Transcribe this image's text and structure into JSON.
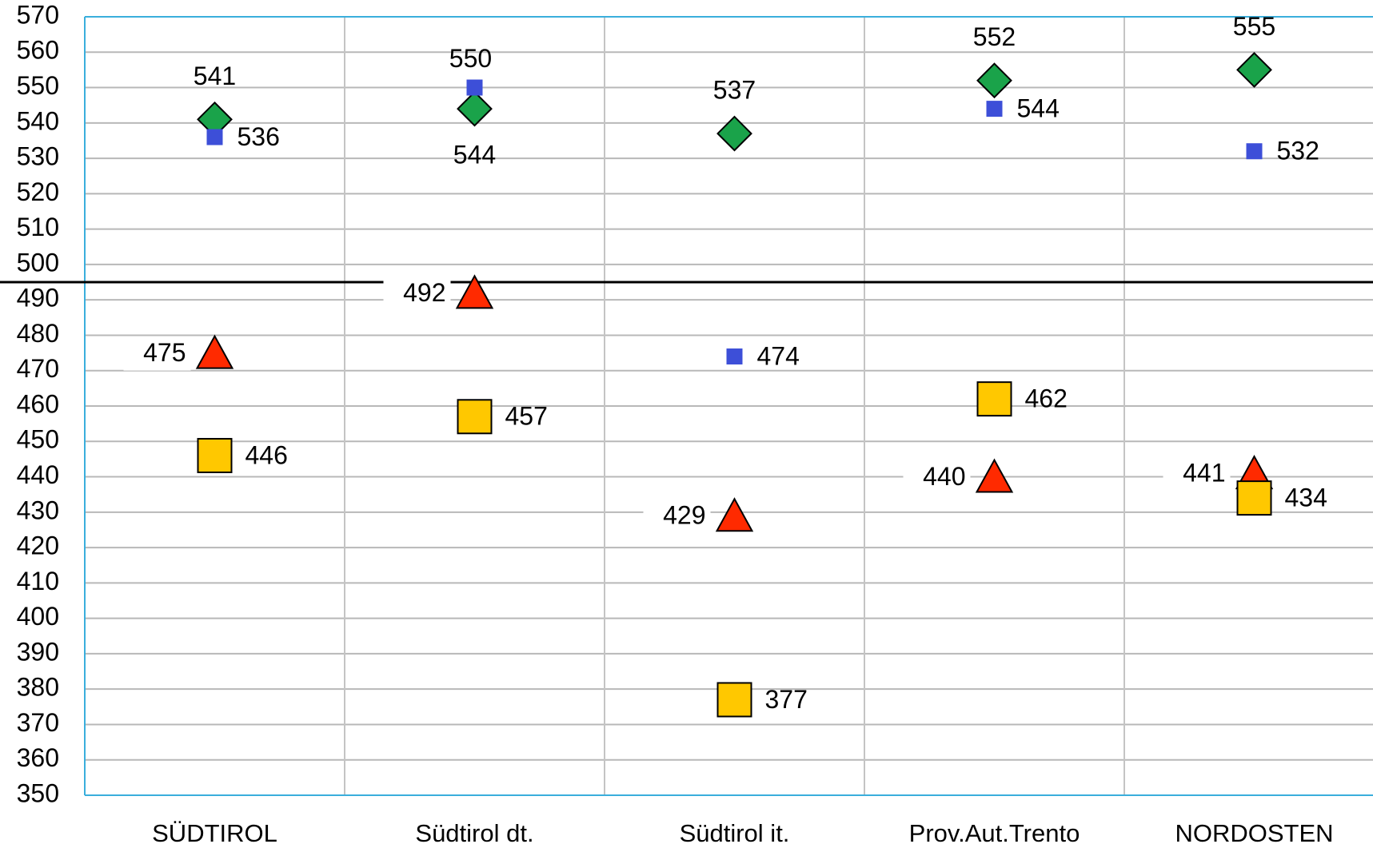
{
  "chart_data": {
    "type": "scatter",
    "categories": [
      "SÜDTIROL",
      "Südtirol dt.",
      "Südtirol it.",
      "Prov.Aut.Trento",
      "NORDOSTEN"
    ],
    "series": [
      {
        "color": "#1aa34a",
        "marker": "diamond",
        "values": [
          541,
          544,
          537,
          552,
          555
        ]
      },
      {
        "color": "#3d4fd8",
        "marker": "small-square",
        "values": [
          536,
          550,
          474,
          544,
          532
        ]
      },
      {
        "color": "#ff2a00",
        "marker": "triangle",
        "values": [
          475,
          492,
          429,
          440,
          441
        ]
      },
      {
        "color": "#ffc800",
        "marker": "square",
        "values": [
          446,
          457,
          377,
          462,
          434
        ]
      }
    ],
    "hline": 495,
    "ylim": [
      350,
      570
    ],
    "yticks": [
      350,
      360,
      370,
      380,
      390,
      400,
      410,
      420,
      430,
      440,
      450,
      460,
      470,
      480,
      490,
      500,
      510,
      520,
      530,
      540,
      550,
      560,
      570
    ],
    "grid": true
  }
}
